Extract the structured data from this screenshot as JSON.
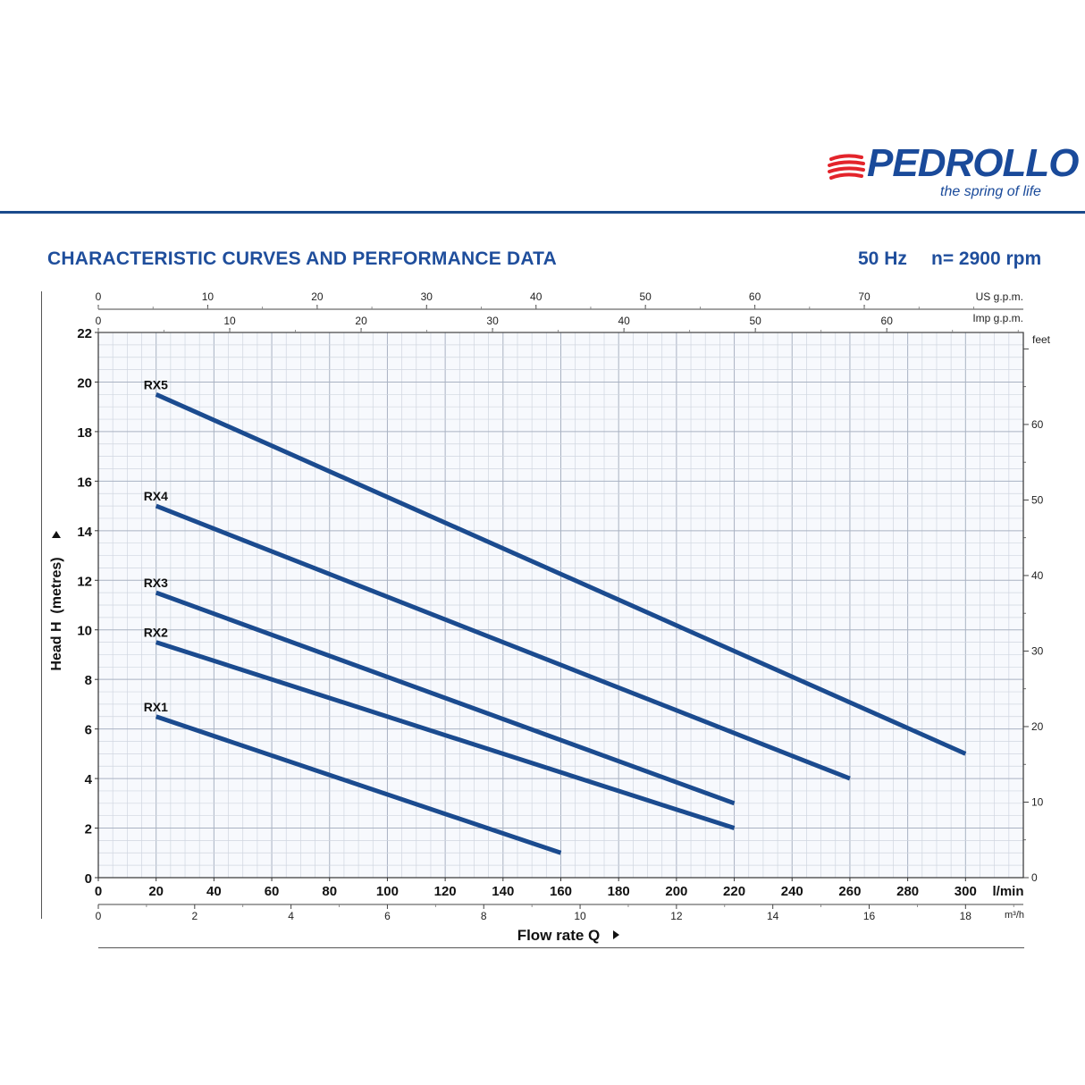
{
  "brand": {
    "name": "PEDROLLO",
    "tagline": "the spring of life",
    "colors": {
      "blue": "#1a4a9a",
      "red": "#e3242b"
    }
  },
  "header": {
    "title": "CHARACTERISTIC CURVES AND PERFORMANCE DATA",
    "frequency": "50 Hz",
    "speed": "n= 2900 rpm"
  },
  "chart_data": {
    "type": "line",
    "xlabel": "Flow rate Q",
    "ylabel": "Head H  (metres)",
    "x_unit": "l/min",
    "xlim": [
      0,
      320
    ],
    "ylim": [
      0,
      22
    ],
    "x_ticks": [
      0,
      20,
      40,
      60,
      80,
      100,
      120,
      140,
      160,
      180,
      200,
      220,
      240,
      260,
      280,
      300
    ],
    "y_ticks": [
      0,
      2,
      4,
      6,
      8,
      10,
      12,
      14,
      16,
      18,
      20,
      22
    ],
    "grid": true,
    "line_color": "#1b4b8f",
    "secondary_axes": {
      "us_gpm": {
        "label": "US g.p.m.",
        "ticks": [
          0,
          10,
          20,
          30,
          40,
          50,
          60,
          70
        ],
        "per_lpm": 0.264172
      },
      "imp_gpm": {
        "label": "Imp g.p.m.",
        "ticks": [
          0,
          10,
          20,
          30,
          40,
          50,
          60
        ],
        "per_lpm": 0.219969
      },
      "m3h": {
        "label": "m³/h",
        "ticks": [
          0,
          2,
          4,
          6,
          8,
          10,
          12,
          14,
          16,
          18
        ],
        "per_lpm": 0.06
      },
      "feet": {
        "label": "feet",
        "ticks": [
          0,
          10,
          20,
          30,
          40,
          50,
          60
        ],
        "per_m": 3.28084
      }
    },
    "series": [
      {
        "name": "RX5",
        "x": [
          20,
          300
        ],
        "y": [
          19.5,
          5.0
        ]
      },
      {
        "name": "RX4",
        "x": [
          20,
          260
        ],
        "y": [
          15.0,
          4.0
        ]
      },
      {
        "name": "RX3",
        "x": [
          20,
          220
        ],
        "y": [
          11.5,
          3.0
        ]
      },
      {
        "name": "RX2",
        "x": [
          20,
          220
        ],
        "y": [
          9.5,
          2.0
        ]
      },
      {
        "name": "RX1",
        "x": [
          20,
          160
        ],
        "y": [
          6.5,
          1.0
        ]
      }
    ]
  }
}
